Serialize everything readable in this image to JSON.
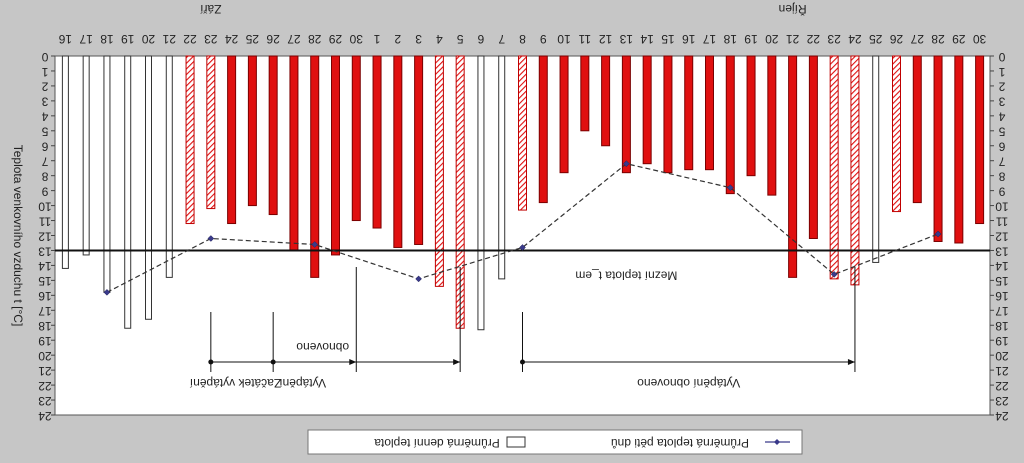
{
  "chart_data": {
    "type": "bar",
    "orientation": "flipped-vertical",
    "title": "",
    "months": [
      "Září",
      "Říjen"
    ],
    "xlabel": "",
    "ylabel": "Teplota venkovního vzduchu t [°C]",
    "ylim": [
      0,
      24
    ],
    "y_ticks": [
      "0",
      "1",
      "2",
      "3",
      "4",
      "5",
      "6",
      "7",
      "8",
      "9",
      "10",
      "11",
      "12",
      "13",
      "14",
      "15",
      "16",
      "17",
      "18",
      "19",
      "20",
      "21",
      "22",
      "23",
      "24"
    ],
    "grid": false,
    "threshold": {
      "value": 13,
      "label": "Mezní teplota t_em"
    },
    "categories": [
      "16",
      "17",
      "18",
      "19",
      "20",
      "21",
      "22",
      "23",
      "24",
      "25",
      "26",
      "27",
      "28",
      "29",
      "30",
      "1",
      "2",
      "3",
      "4",
      "5",
      "6",
      "7",
      "8",
      "9",
      "10",
      "11",
      "12",
      "13",
      "14",
      "15",
      "16",
      "17",
      "18",
      "19",
      "20",
      "21",
      "22",
      "23",
      "24",
      "25",
      "26",
      "27",
      "28",
      "29",
      "30"
    ],
    "daily_values": [
      14.2,
      13.3,
      15.8,
      18.2,
      17.6,
      14.8,
      11.2,
      10.2,
      11.2,
      10.0,
      10.6,
      13.0,
      14.8,
      13.3,
      11.0,
      11.5,
      12.8,
      12.6,
      15.4,
      18.2,
      18.3,
      14.9,
      10.3,
      9.8,
      7.8,
      5.0,
      6.0,
      7.8,
      7.2,
      7.8,
      7.6,
      7.6,
      9.2,
      8.0,
      9.3,
      14.8,
      12.2,
      14.9,
      15.3,
      13.8,
      10.4,
      9.8,
      12.4,
      12.5,
      11.2
    ],
    "bar_style": [
      "open",
      "open",
      "open",
      "open",
      "open",
      "open",
      "hatched",
      "hatched",
      "red",
      "red",
      "red",
      "red",
      "red",
      "red",
      "red",
      "red",
      "red",
      "red",
      "hatched",
      "hatched",
      "open",
      "open",
      "hatched",
      "red",
      "red",
      "red",
      "red",
      "red",
      "red",
      "red",
      "red",
      "red",
      "red",
      "red",
      "red",
      "red",
      "red",
      "hatched",
      "hatched",
      "open",
      "hatched",
      "red",
      "red",
      "red",
      "red"
    ],
    "series": [
      {
        "name": "Průměrná denní teplota",
        "values": "daily_values"
      },
      {
        "name": "Průměrná teplota pěti dnů",
        "points": [
          {
            "x": "18",
            "y": 15.8
          },
          {
            "x": "23",
            "y": 12.2
          },
          {
            "x": "28",
            "y": 12.6
          },
          {
            "x": "3",
            "y": 14.9
          },
          {
            "x": "8",
            "y": 12.8
          },
          {
            "x": "13",
            "y": 7.2
          },
          {
            "x": "18",
            "y": 8.8
          },
          {
            "x": "23",
            "y": 14.6
          },
          {
            "x": "28",
            "y": 11.9
          }
        ]
      }
    ],
    "annotations": {
      "period1": {
        "label": "Začátek vytápění",
        "from": "23",
        "to": "5"
      },
      "period2": {
        "label": "Vytápění obnoveno",
        "from": "8",
        "to": "24"
      },
      "period3": {
        "label": "Vytápění",
        "label2": "obnoveno",
        "from": "26",
        "to": "30"
      }
    },
    "legend": {
      "position": "bottom",
      "items": [
        "Průměrná denní teplota",
        "Průměrná teplota pěti dnů"
      ]
    }
  }
}
